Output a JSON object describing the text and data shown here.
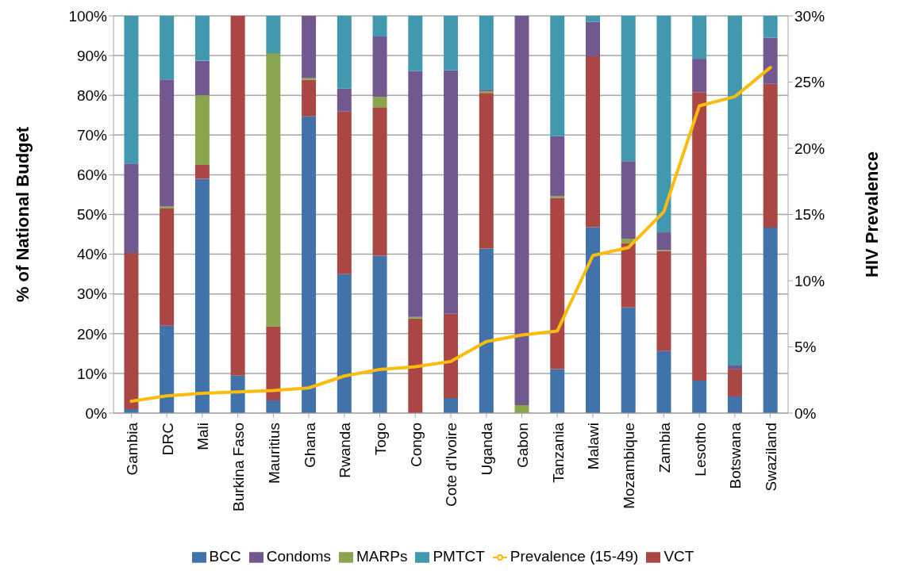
{
  "chart_data": {
    "type": "bar",
    "stacked": true,
    "ylabel": "% of National Budget",
    "y2label": "HIV Prevalence",
    "categories": [
      "Gambia",
      "DRC",
      "Mali",
      "Burkina Faso",
      "Mauritius",
      "Ghana",
      "Rwanda",
      "Togo",
      "Congo",
      "Cote d'Ivoire",
      "Uganda",
      "Gabon",
      "Tanzania",
      "Malawi",
      "Mozambique",
      "Zambia",
      "Lesotho",
      "Botswana",
      "Swaziland"
    ],
    "series": [
      {
        "name": "BCC",
        "color": "#4172a9",
        "values": [
          1,
          22,
          59,
          9.5,
          3.2,
          74.7,
          35,
          39.6,
          0,
          3.8,
          41.4,
          0,
          11.1,
          46.8,
          26.6,
          15.6,
          8.2,
          4.2,
          46.7
        ]
      },
      {
        "name": "VCT",
        "color": "#aa4643",
        "values": [
          39.3,
          29.5,
          3.5,
          90.5,
          18.6,
          9.2,
          40.9,
          37.4,
          23.8,
          21.2,
          39.2,
          0,
          43.1,
          43,
          16.2,
          25.2,
          72.6,
          6.8,
          36.2
        ]
      },
      {
        "name": "MARPs",
        "color": "#89a54e",
        "values": [
          0,
          0.5,
          17.5,
          0,
          68.8,
          0.5,
          0,
          2.6,
          0.4,
          0,
          0.4,
          2,
          0.4,
          0,
          1.1,
          0.3,
          0,
          0,
          0
        ]
      },
      {
        "name": "Condoms",
        "color": "#71588f",
        "values": [
          22.5,
          32,
          8.7,
          0,
          0,
          15.6,
          5.8,
          15.2,
          61.9,
          61.3,
          0.4,
          98,
          15.1,
          8.7,
          19.5,
          4.4,
          8.4,
          1,
          11.6
        ]
      },
      {
        "name": "PMTCT",
        "color": "#4198af",
        "values": [
          37.2,
          16,
          11.3,
          0,
          9.4,
          0,
          18.3,
          5.2,
          13.9,
          13.7,
          18.6,
          0,
          30.3,
          1.5,
          36.6,
          54.5,
          10.8,
          88,
          5.5
        ]
      },
      {
        "name": "Prevalence (15-49)",
        "type": "line",
        "axis": "y2",
        "color": "#fbbc0d",
        "values": [
          0.9,
          1.3,
          1.5,
          1.6,
          1.7,
          1.9,
          2.8,
          3.3,
          3.5,
          3.9,
          5.4,
          5.9,
          6.2,
          11.9,
          12.5,
          15.2,
          23.2,
          23.9,
          26.1
        ]
      }
    ],
    "ylim": [
      0,
      100
    ],
    "yticks": [
      {
        "value": 0,
        "label": "0%"
      },
      {
        "value": 10,
        "label": "10%"
      },
      {
        "value": 20,
        "label": "20%"
      },
      {
        "value": 30,
        "label": "30%"
      },
      {
        "value": 40,
        "label": "40%"
      },
      {
        "value": 50,
        "label": "50%"
      },
      {
        "value": 60,
        "label": "60%"
      },
      {
        "value": 70,
        "label": "70%"
      },
      {
        "value": 80,
        "label": "80%"
      },
      {
        "value": 90,
        "label": "90%"
      },
      {
        "value": 100,
        "label": "100%"
      }
    ],
    "y2lim": [
      0,
      30
    ],
    "y2ticks": [
      {
        "value": 0,
        "label": "0%"
      },
      {
        "value": 5,
        "label": "5%"
      },
      {
        "value": 10,
        "label": "10%"
      },
      {
        "value": 15,
        "label": "15%"
      },
      {
        "value": 20,
        "label": "20%"
      },
      {
        "value": 25,
        "label": "25%"
      },
      {
        "value": 30,
        "label": "30%"
      }
    ],
    "grid": "y",
    "legend": "bottom",
    "marker": "none",
    "line_style": "solid"
  }
}
